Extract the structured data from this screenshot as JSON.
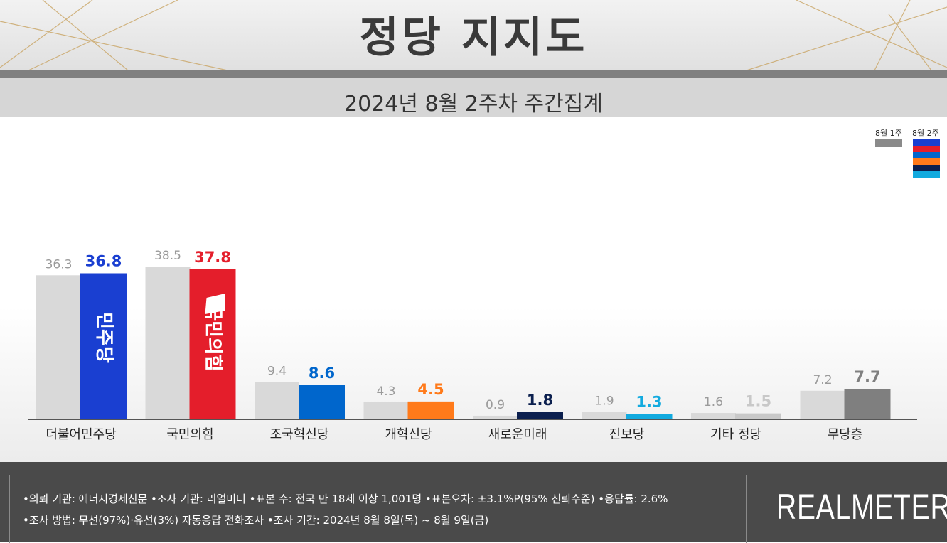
{
  "header": {
    "title": "정당 지지도",
    "subtitle": "2024년 8월 2주차 주간집계"
  },
  "legend": {
    "previous": "8월 1주",
    "current": "8월 2주",
    "current_swatch_colors": [
      "#1a3fd1",
      "#e41e2b",
      "#0066cc",
      "#ff7a1a",
      "#0b1f4e",
      "#12aadf"
    ]
  },
  "colors": {
    "previous": "#d9d9d9",
    "logo_text": "#ffffff"
  },
  "chart_data": {
    "type": "bar",
    "categories": [
      "더불어민주당",
      "국민의힘",
      "조국혁신당",
      "개혁신당",
      "새로운미래",
      "진보당",
      "기타 정당",
      "무당층"
    ],
    "series": [
      {
        "name": "8월 1주",
        "values": [
          36.3,
          38.5,
          9.4,
          4.3,
          0.9,
          1.9,
          1.6,
          7.2
        ]
      },
      {
        "name": "8월 2주",
        "values": [
          36.8,
          37.8,
          8.6,
          4.5,
          1.8,
          1.3,
          1.5,
          7.7
        ],
        "colors": [
          "#1a3fd1",
          "#e41e2b",
          "#0066cc",
          "#ff7a1a",
          "#0b1f4e",
          "#12aadf",
          "#c8c8c8",
          "#7f7f7f"
        ],
        "label_colors": [
          "#1a3fd1",
          "#e41e2b",
          "#0066cc",
          "#ff7a1a",
          "#0b1f4e",
          "#12aadf",
          "#c8c8c8",
          "#7f7f7f"
        ]
      }
    ],
    "bar_logos": [
      "민주당",
      "국민의힘"
    ],
    "ylim": [
      0,
      40
    ],
    "grid": false,
    "legend_position": "top-right"
  },
  "footer": {
    "line1": "•의뢰 기관: 에너지경제신문   •조사 기관: 리얼미터  •표본 수: 전국 만 18세 이상 1,001명  •표본오차: ±3.1%P(95% 신뢰수준)  •응답률: 2.6%",
    "line2": "•조사 방법: 무선(97%)·유선(3%) 자동응답 전화조사  •조사 기간: 2024년 8월 8일(목) ~ 8월 9일(금)",
    "brand": "REALMETER"
  }
}
